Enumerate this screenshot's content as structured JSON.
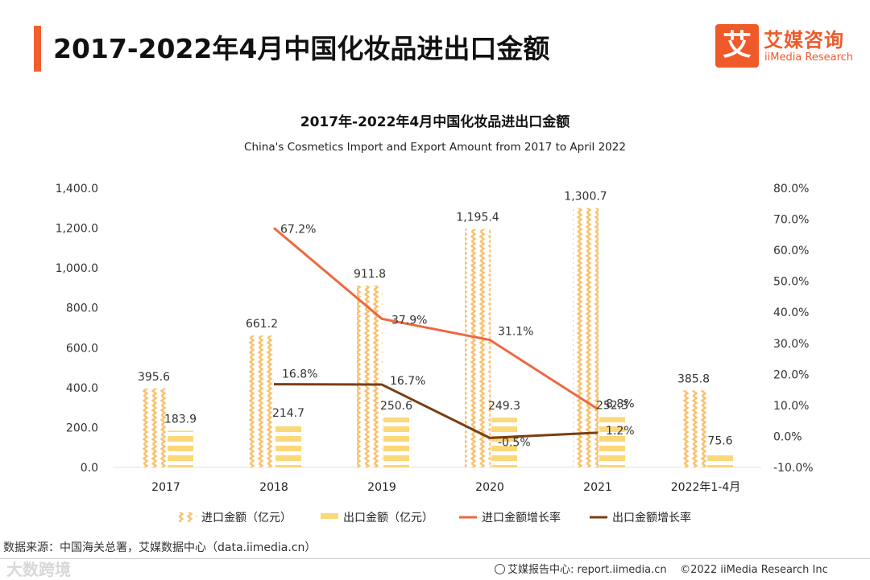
{
  "header": {
    "title": "2017-2022年4月中国化妆品进出口金额"
  },
  "logo": {
    "box_char": "艾",
    "cn": "艾媒咨询",
    "en": "iiMedia Research"
  },
  "colors": {
    "accent": "#f0602e",
    "import_bar": "#f8c26e",
    "export_bar": "#fbd879",
    "import_line": "#ee6840",
    "export_line": "#7a3e12"
  },
  "chart_data": {
    "type": "bar",
    "title": "2017年-2022年4月中国化妆品进出口金额",
    "subtitle": "China's Cosmetics Import and Export Amount from 2017 to April 2022",
    "categories": [
      "2017",
      "2018",
      "2019",
      "2020",
      "2021",
      "2022年1-4月"
    ],
    "left_axis": {
      "ylim": [
        0,
        1400
      ],
      "ticks": [
        "0.0",
        "200.0",
        "400.0",
        "600.0",
        "800.0",
        "1,000.0",
        "1,200.0",
        "1,400.0"
      ]
    },
    "right_axis": {
      "ylim": [
        -10,
        80
      ],
      "ticks": [
        "-10.0%",
        "0.0%",
        "10.0%",
        "20.0%",
        "30.0%",
        "40.0%",
        "50.0%",
        "60.0%",
        "70.0%",
        "80.0%"
      ]
    },
    "series": [
      {
        "name": "进口金额（亿元）",
        "kind": "bar",
        "axis": "left",
        "values": [
          395.6,
          661.2,
          911.8,
          1195.4,
          1300.7,
          385.8
        ],
        "labels": [
          "395.6",
          "661.2",
          "911.8",
          "1,195.4",
          "1,300.7",
          "385.8"
        ]
      },
      {
        "name": "出口金额（亿元）",
        "kind": "bar",
        "axis": "left",
        "values": [
          183.9,
          214.7,
          250.6,
          249.3,
          252.3,
          75.6
        ],
        "labels": [
          "183.9",
          "214.7",
          "250.6",
          "249.3",
          "252.3",
          "75.6"
        ]
      },
      {
        "name": "进口金额增长率",
        "kind": "line",
        "axis": "right",
        "values": [
          null,
          67.2,
          37.9,
          31.1,
          8.8,
          null
        ],
        "labels": [
          "",
          "67.2%",
          "37.9%",
          "31.1%",
          "8.8%",
          ""
        ]
      },
      {
        "name": "出口金额增长率",
        "kind": "line",
        "axis": "right",
        "values": [
          null,
          16.8,
          16.7,
          -0.5,
          1.2,
          null
        ],
        "labels": [
          "",
          "16.8%",
          "16.7%",
          "-0.5%",
          "1.2%",
          ""
        ]
      }
    ],
    "legend_position": "bottom"
  },
  "source": "数据来源：中国海关总署，艾媒数据中心（data.iimedia.cn）",
  "footer": {
    "report_center": "艾媒报告中心: report.iimedia.cn",
    "copyright": "©2022  iiMedia Research  Inc"
  },
  "watermark": "大数跨境"
}
